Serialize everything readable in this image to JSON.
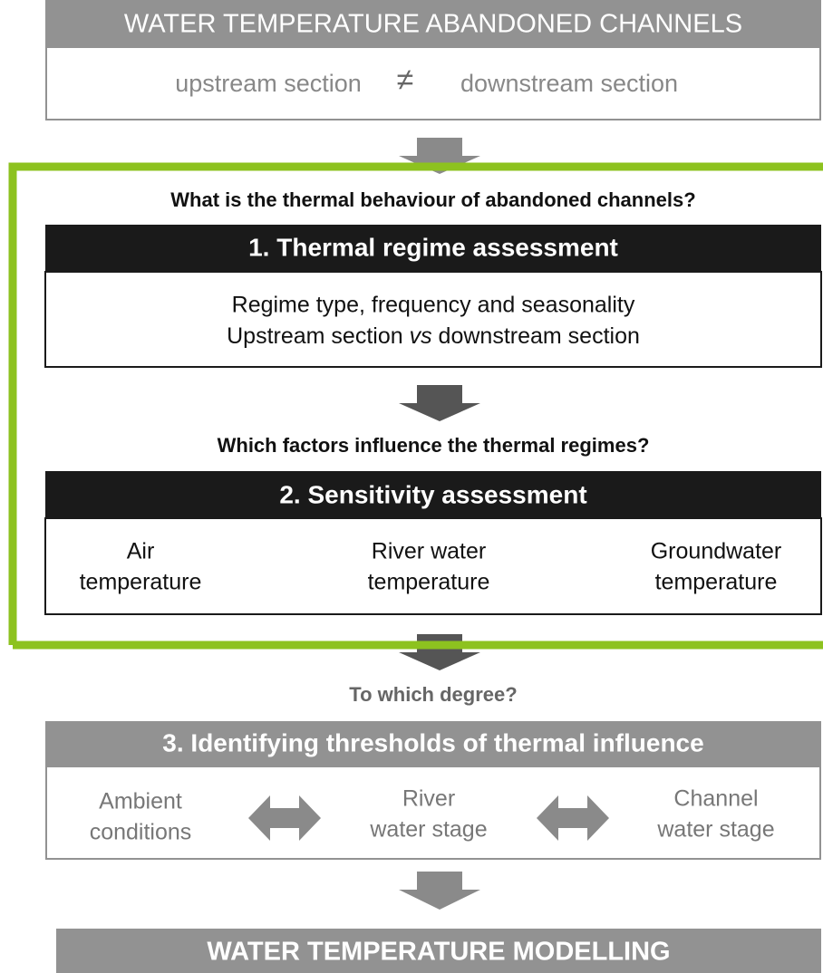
{
  "header": {
    "title": "WATER TEMPERATURE ABANDONED CHANNELS",
    "left": "upstream section",
    "symbol": "≠",
    "right": "downstream section"
  },
  "step1": {
    "question": "What is the thermal behaviour of abandoned channels?",
    "title": "1. Thermal regime assessment",
    "line1": "Regime type, frequency and seasonality",
    "line2": [
      "Upstream section",
      "vs",
      "downstream section"
    ]
  },
  "step2": {
    "question": "Which factors influence the thermal regimes?",
    "title": "2. Sensitivity assessment",
    "factors": [
      [
        "Air",
        "temperature"
      ],
      [
        "River water",
        "temperature"
      ],
      [
        "Groundwater",
        "temperature"
      ]
    ]
  },
  "step3": {
    "question": "To which degree?",
    "title": "3. Identifying thresholds of thermal influence",
    "items": [
      [
        "Ambient",
        "conditions"
      ],
      [
        "River",
        "water stage"
      ],
      [
        "Channel",
        "water stage"
      ]
    ]
  },
  "footer": {
    "title": "WATER TEMPERATURE MODELLING"
  }
}
